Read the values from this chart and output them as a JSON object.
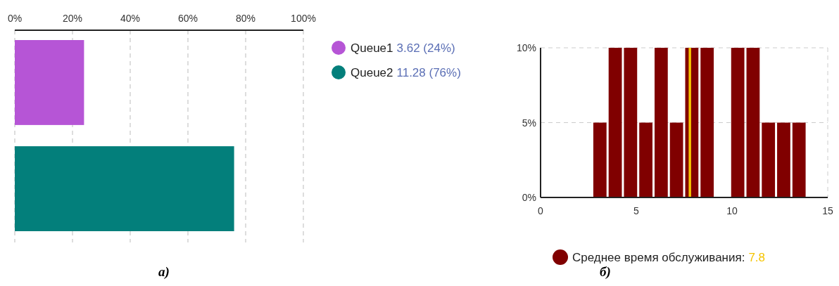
{
  "chart_data": [
    {
      "type": "bar",
      "orientation": "horizontal",
      "categories": [
        null,
        null
      ],
      "series": [
        {
          "name": "Queue1",
          "color": "#b655d6",
          "values": [
            24,
            null
          ]
        },
        {
          "name": "Queue2",
          "color": "#037f7b",
          "values": [
            null,
            76
          ]
        }
      ],
      "xlim": [
        0,
        100
      ],
      "xticks": [
        {
          "value": 0,
          "label": "0%"
        },
        {
          "value": 20,
          "label": "20%"
        },
        {
          "value": 40,
          "label": "40%"
        },
        {
          "value": 60,
          "label": "60%"
        },
        {
          "value": 80,
          "label": "80%"
        },
        {
          "value": 100,
          "label": "100%"
        }
      ],
      "grid": "x",
      "legend": "right",
      "annotations": [
        "3.62 (24%)",
        "11.28 (76%)",
        "а)"
      ]
    },
    {
      "type": "histogram",
      "bins": [
        2.7,
        3.5,
        4.3,
        5.1,
        5.9,
        6.7,
        7.5,
        8.3,
        9.1,
        9.9,
        10.7,
        11.5,
        12.3,
        13.1,
        13.9
      ],
      "series": [
        {
          "name": "Среднее время обслуживания:",
          "color": "#800000",
          "values": [
            5,
            10,
            10,
            5,
            10,
            5,
            10,
            10,
            0,
            10,
            10,
            5,
            5,
            5
          ]
        }
      ],
      "xlim": [
        0,
        15
      ],
      "xticks": [
        0,
        5,
        10,
        15
      ],
      "ylim": [
        0,
        10
      ],
      "yticks": [
        {
          "value": 0,
          "label": "0%"
        },
        {
          "value": 5,
          "label": "5%"
        },
        {
          "value": 10,
          "label": "10%"
        }
      ],
      "ref_lines": [
        {
          "axis": "x",
          "value": 7.8,
          "label": "7.8",
          "color": "#f5c400"
        }
      ],
      "grid": "y",
      "legend": "bottom",
      "annotations": [
        "б)"
      ]
    }
  ]
}
